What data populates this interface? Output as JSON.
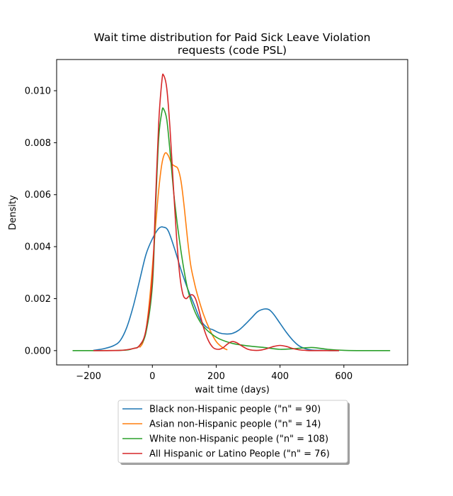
{
  "chart_data": {
    "type": "line",
    "title": "Wait time distribution  for Paid Sick Leave Violation",
    "subtitle": "requests (code PSL)",
    "xlabel": "wait time (days)",
    "ylabel": "Density",
    "xlim": [
      -300,
      800
    ],
    "ylim": [
      -0.00055,
      0.0112
    ],
    "xticks": [
      -200,
      0,
      200,
      400,
      600
    ],
    "xtick_labels": [
      "−200",
      "0",
      "200",
      "400",
      "600"
    ],
    "yticks": [
      0.0,
      0.002,
      0.004,
      0.006,
      0.008,
      0.01
    ],
    "ytick_labels": [
      "0.000",
      "0.002",
      "0.004",
      "0.006",
      "0.008",
      "0.010"
    ],
    "grid": false,
    "legend_position": "bottom-center",
    "series": [
      {
        "name": "Black non-Hispanic people (\"n\" = 90)",
        "color": "#1f77b4",
        "x": [
          -185,
          -150,
          -120,
          -100,
          -80,
          -60,
          -40,
          -20,
          0,
          20,
          35,
          50,
          70,
          90,
          110,
          130,
          150,
          170,
          190,
          210,
          230,
          250,
          270,
          290,
          310,
          330,
          350,
          365,
          380,
          400,
          420,
          440,
          460,
          480,
          500,
          530,
          560,
          585
        ],
        "y": [
          1e-05,
          8e-05,
          0.0002,
          0.0004,
          0.0009,
          0.0017,
          0.0027,
          0.0037,
          0.0043,
          0.0047,
          0.00475,
          0.0046,
          0.0039,
          0.0031,
          0.0024,
          0.0018,
          0.0012,
          0.0009,
          0.0008,
          0.00068,
          0.00064,
          0.00066,
          0.00078,
          0.001,
          0.00125,
          0.0015,
          0.0016,
          0.00158,
          0.0014,
          0.00105,
          0.0007,
          0.0004,
          0.00018,
          7e-05,
          2e-05,
          1e-05,
          0.0,
          0.0
        ]
      },
      {
        "name": "Asian non-Hispanic people (\"n\" = 14)",
        "color": "#ff7f0e",
        "x": [
          -40,
          -30,
          -20,
          -10,
          0,
          10,
          20,
          30,
          40,
          50,
          60,
          70,
          80,
          90,
          100,
          110,
          120,
          130,
          140,
          160,
          180,
          200,
          220,
          235
        ],
        "y": [
          0.00012,
          0.0003,
          0.0008,
          0.0018,
          0.0032,
          0.0048,
          0.0062,
          0.0072,
          0.0076,
          0.0075,
          0.0072,
          0.0071,
          0.007,
          0.0065,
          0.0055,
          0.0043,
          0.0033,
          0.0027,
          0.0022,
          0.0014,
          0.0008,
          0.00035,
          0.00012,
          3e-05
        ]
      },
      {
        "name": "White non-Hispanic people (\"n\" = 108)",
        "color": "#2ca02c",
        "x": [
          -250,
          -100,
          -60,
          -40,
          -20,
          0,
          10,
          20,
          30,
          35,
          45,
          55,
          70,
          90,
          110,
          130,
          150,
          170,
          190,
          210,
          250,
          300,
          350,
          400,
          450,
          500,
          550,
          600,
          650,
          700,
          745
        ],
        "y": [
          0.0,
          1e-05,
          8e-05,
          0.0002,
          0.0007,
          0.0025,
          0.0055,
          0.0082,
          0.0092,
          0.0093,
          0.0089,
          0.0077,
          0.0057,
          0.0038,
          0.0024,
          0.0016,
          0.0011,
          0.0008,
          0.0006,
          0.00045,
          0.00028,
          0.00018,
          0.00012,
          5e-05,
          8e-05,
          0.00012,
          5e-05,
          1e-05,
          0.0,
          0.0,
          0.0
        ]
      },
      {
        "name": "All Hispanic or Latino People (\"n\" = 76)",
        "color": "#d62728",
        "x": [
          -185,
          -100,
          -60,
          -40,
          -20,
          0,
          10,
          20,
          30,
          35,
          45,
          55,
          65,
          75,
          85,
          95,
          105,
          115,
          125,
          135,
          145,
          160,
          175,
          190,
          205,
          220,
          235,
          250,
          265,
          280,
          300,
          320,
          340,
          360,
          380,
          400,
          420,
          440,
          460,
          480,
          500,
          540,
          585
        ],
        "y": [
          0.0,
          1e-05,
          8e-05,
          0.0002,
          0.0008,
          0.0028,
          0.0058,
          0.0088,
          0.0104,
          0.0106,
          0.0101,
          0.0086,
          0.0065,
          0.0045,
          0.003,
          0.0022,
          0.002,
          0.0021,
          0.00215,
          0.002,
          0.0016,
          0.0009,
          0.0004,
          0.00012,
          5e-05,
          0.0001,
          0.00025,
          0.00035,
          0.0003,
          0.00018,
          5e-05,
          1e-05,
          2e-05,
          8e-05,
          0.00016,
          0.0002,
          0.00016,
          8e-05,
          3e-05,
          1e-05,
          0.0,
          0.0,
          0.0
        ]
      }
    ]
  }
}
